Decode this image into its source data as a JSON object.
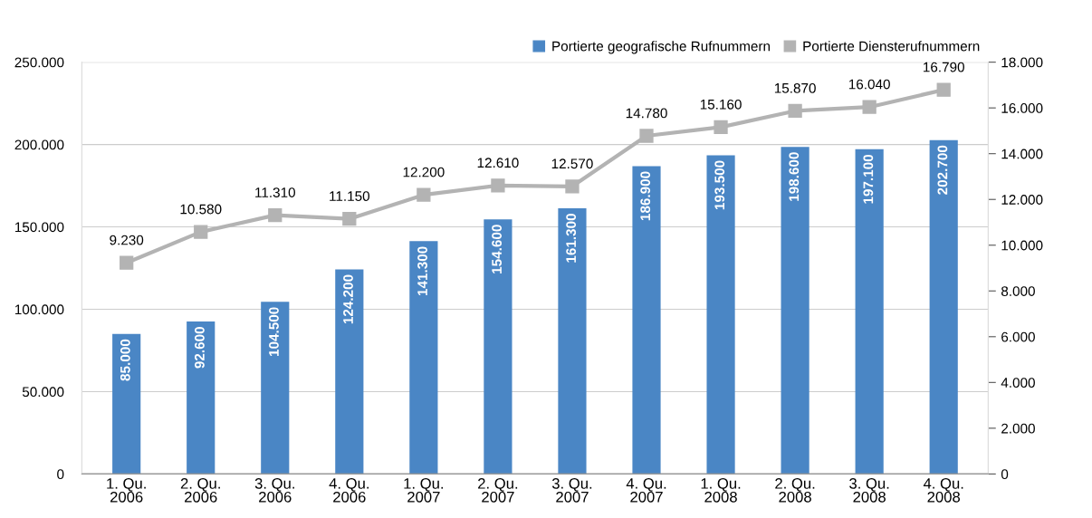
{
  "chart_data": {
    "type": "bar",
    "categories": [
      "1. Qu.\n2006",
      "2. Qu.\n2006",
      "3. Qu.\n2006",
      "4. Qu.\n2006",
      "1. Qu.\n2007",
      "2. Qu.\n2007",
      "3. Qu.\n2007",
      "4. Qu.\n2007",
      "1. Qu.\n2008",
      "2. Qu.\n2008",
      "3. Qu.\n2008",
      "4. Qu.\n2008"
    ],
    "series": [
      {
        "name": "Portierte geografische Rufnummern",
        "color": "#4a86c5",
        "values": [
          85000,
          92600,
          104500,
          124200,
          141300,
          154600,
          161300,
          186900,
          193500,
          198600,
          197100,
          202700
        ],
        "value_labels": [
          "85.000",
          "92.600",
          "104.500",
          "124.200",
          "141.300",
          "154.600",
          "161.300",
          "186.900",
          "193.500",
          "198.600",
          "197.100",
          "202.700"
        ]
      },
      {
        "name": "Portierte Diensterufnummern",
        "type": "line",
        "axis": "y2",
        "color": "#b3b3b3",
        "marker": "square",
        "values": [
          9230,
          10580,
          11310,
          11150,
          12200,
          12610,
          12570,
          14780,
          15160,
          15870,
          16040,
          16790
        ],
        "value_labels": [
          "9.230",
          "10.580",
          "11.310",
          "11.150",
          "12.200",
          "12.610",
          "12.570",
          "14.780",
          "15.160",
          "15.870",
          "16.040",
          "16.790"
        ]
      }
    ],
    "ylim": [
      0,
      250000
    ],
    "yticks": [
      0,
      {
        "value": 50000,
        "label": "50.000"
      },
      {
        "value": 100000,
        "label": "100.000"
      },
      {
        "value": 150000,
        "label": "150.000"
      },
      {
        "value": 200000,
        "label": "200.000"
      },
      {
        "value": 250000,
        "label": "250.000"
      }
    ],
    "y2lim": [
      0,
      18000
    ],
    "y2ticks": [
      0,
      {
        "value": 2000,
        "label": "2.000"
      },
      {
        "value": 4000,
        "label": "4.000"
      },
      {
        "value": 6000,
        "label": "6.000"
      },
      {
        "value": 8000,
        "label": "8.000"
      },
      {
        "value": 10000,
        "label": "10.000"
      },
      {
        "value": 12000,
        "label": "12.000"
      },
      {
        "value": 14000,
        "label": "14.000"
      },
      {
        "value": 16000,
        "label": "16.000"
      },
      {
        "value": 18000,
        "label": "18.000"
      }
    ],
    "grid": "y",
    "legend": "top right"
  }
}
